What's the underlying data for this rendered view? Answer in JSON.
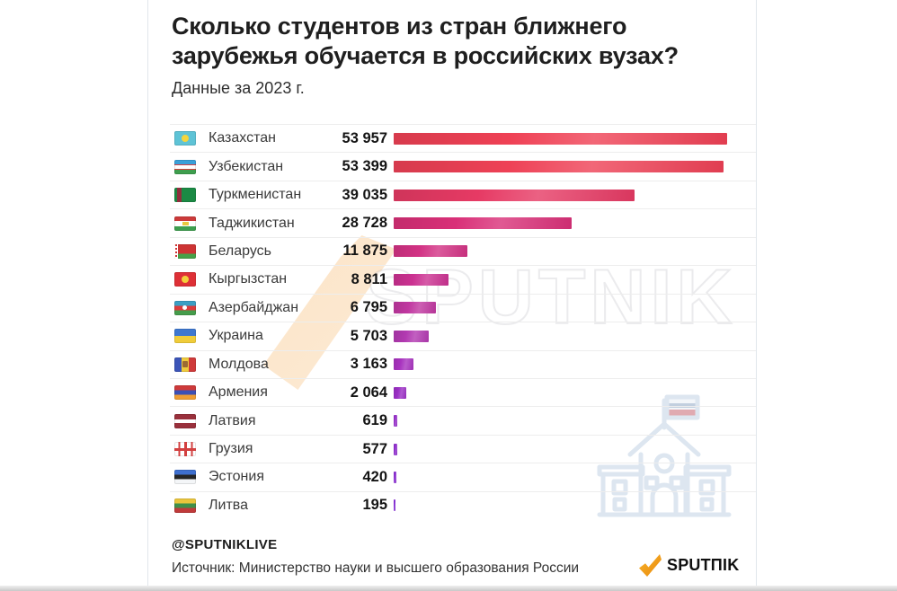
{
  "title": "Сколько студентов из стран ближнего зарубежья обучается в российских вузах?",
  "subtitle": "Данные за 2023 г.",
  "footer": {
    "handle": "@SPUTNIKLIVE",
    "source": "Источник: Министерство науки и высшего образования России",
    "logo_text": "SPUTΠIK"
  },
  "watermark": {
    "text": "SPUTNIK"
  },
  "colors": {
    "bar_start": "#ef4155",
    "bar_end": "#8129d2",
    "accent_orange": "#f5a623",
    "separator": "#ededed"
  },
  "chart_data": {
    "type": "bar",
    "orientation": "horizontal",
    "title": "Сколько студентов из стран ближнего зарубежья обучается в российских вузах?",
    "subtitle": "Данные за 2023 г.",
    "xlabel": "",
    "ylabel": "",
    "xlim": [
      0,
      53957
    ],
    "grid": false,
    "legend": "none",
    "categories": [
      "Казахстан",
      "Узбекистан",
      "Туркменистан",
      "Таджикистан",
      "Беларусь",
      "Кыргызстан",
      "Азербайджан",
      "Украина",
      "Молдова",
      "Армения",
      "Латвия",
      "Грузия",
      "Эстония",
      "Литва"
    ],
    "values": [
      53957,
      53399,
      39035,
      28728,
      11875,
      8811,
      6795,
      5703,
      3163,
      2064,
      619,
      577,
      420,
      195
    ],
    "value_labels": [
      "53 957",
      "53 399",
      "39 035",
      "28 728",
      "11 875",
      "8 811",
      "6 795",
      "5 703",
      "3 163",
      "2 064",
      "619",
      "577",
      "420",
      "195"
    ],
    "bar_colors": [
      "#ef4155",
      "#ee4156",
      "#e63a64",
      "#d93078",
      "#d23284",
      "#cb3191",
      "#c037a0",
      "#b239b1",
      "#a833bf",
      "#9b2fc5",
      "#952fc8",
      "#8d2ccb",
      "#872bce",
      "#8129d2"
    ],
    "flags": [
      "kz",
      "uz",
      "tm",
      "tj",
      "by",
      "kg",
      "az",
      "ua",
      "md",
      "am",
      "lv",
      "ge",
      "ee",
      "lt"
    ]
  }
}
